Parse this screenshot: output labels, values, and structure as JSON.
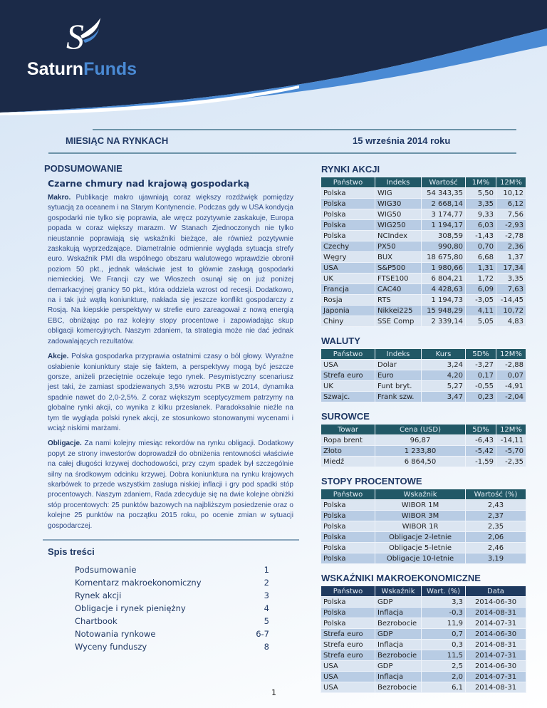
{
  "brand": {
    "name_a": "Saturn",
    "name_b": "Funds"
  },
  "header": {
    "title": "MIESIĄC NA RYNKACH",
    "date": "15 września 2014 roku"
  },
  "summary": {
    "section": "PODSUMOWANIE",
    "headline": "Czarne chmury nad krajową gospodarką",
    "paragraphs": [
      {
        "lead": "Makro.",
        "text": " Publikacje makro ujawniają coraz większy rozdźwięk pomiędzy sytuacją za oceanem i na Starym Kontynencie. Podczas gdy w USA kondycja gospodarki nie tylko się poprawia, ale wręcz pozytywnie zaskakuje, Europa popada w coraz większy marazm. W Stanach Zjednoczonych nie tylko nieustannie poprawiają się wskaźniki bieżące, ale również pozytywnie zaskakują wyprzedzające. Diametralnie odmiennie wygląda sytuacja strefy euro. Wskaźnik PMI dla wspólnego obszaru walutowego wprawdzie obronił poziom 50 pkt., jednak właściwie jest to głównie zasługą gospodarki niemieckiej. We Francji czy we Włoszech osunął się on już poniżej demarkacyjnej granicy 50 pkt., która oddziela wzrost od recesji. Dodatkowo, na i tak już wątłą koniunkturę, nakłada się jeszcze konflikt gospodarczy z Rosją. Na kiepskie perspektywy w strefie euro zareagował z nową energią EBC, obniżając po raz kolejny stopy procentowe i zapowiadając skup obligacji komercyjnych. Naszym zdaniem, ta strategia może nie dać jednak zadowalających rezultatów."
      },
      {
        "lead": "Akcje.",
        "text": " Polska gospodarka przyprawia ostatnimi czasy o ból głowy. Wyraźne osłabienie koniunktury staje się faktem, a perspektywy mogą być jeszcze gorsze, aniżeli przeciętnie oczekuje tego rynek. Pesymistyczny scenariusz jest taki, że zamiast spodziewanych 3,5% wzrostu PKB w 2014, dynamika spadnie nawet do 2,0-2,5%. Z coraz większym sceptycyzmem patrzymy na globalne rynki akcji, co wynika z kilku przesłanek. Paradoksalnie nieźle na tym tle wygląda polski rynek akcji, ze stosunkowo stonowanymi wycenami i wciąż niskimi marżami."
      },
      {
        "lead": "Obligacje.",
        "text": " Za nami kolejny miesiąc rekordów na rynku obligacji. Dodatkowy popyt ze strony inwestorów doprowadził do obniżenia rentowności właściwie na całej długości krzywej dochodowości, przy czym spadek był szczególnie silny na środkowym odcinku krzywej. Dobra koniunktura na rynku krajowych skarbówek to przede wszystkim zasługa niskiej inflacji i gry pod spadki stóp procentowych. Naszym zdaniem, Rada zdecyduje się na dwie kolejne obniżki stóp procentowych: 25 punktów bazowych na najbliższym posiedzenie oraz o kolejne 25 punktów na początku 2015 roku, po ocenie zmian w sytuacji gospodarczej."
      }
    ]
  },
  "toc": {
    "title": "Spis treści",
    "items": [
      [
        "Podsumowanie",
        "1"
      ],
      [
        "Komentarz makroekonomiczny",
        "2"
      ],
      [
        "Rynek akcji",
        "3"
      ],
      [
        "Obligacje i rynek pieniężny",
        "4"
      ],
      [
        "Chartbook",
        "5"
      ],
      [
        "Notowania rynkowe",
        "6-7"
      ],
      [
        "Wyceny funduszy",
        "8"
      ]
    ]
  },
  "page_number": "1",
  "tables": {
    "equities": {
      "title": "RYNKI AKCJI",
      "headers": [
        "Państwo",
        "Indeks",
        "Wartość",
        "1M%",
        "12M%"
      ],
      "rows": [
        [
          "Polska",
          "WIG",
          "54 343,35",
          "5,50",
          "10,12"
        ],
        [
          "Polska",
          "WIG30",
          "2 668,14",
          "3,35",
          "6,12"
        ],
        [
          "Polska",
          "WIG50",
          "3 174,77",
          "9,33",
          "7,56"
        ],
        [
          "Polska",
          "WIG250",
          "1 194,17",
          "6,03",
          "-2,93"
        ],
        [
          "Polska",
          "NCIndex",
          "308,59",
          "-1,43",
          "-2,78"
        ],
        [
          "Czechy",
          "PX50",
          "990,80",
          "0,70",
          "2,36"
        ],
        [
          "Węgry",
          "BUX",
          "18 675,80",
          "6,68",
          "1,37"
        ],
        [
          "USA",
          "S&P500",
          "1 980,66",
          "1,31",
          "17,34"
        ],
        [
          "UK",
          "FTSE100",
          "6 804,21",
          "1,72",
          "3,35"
        ],
        [
          "Francja",
          "CAC40",
          "4 428,63",
          "6,09",
          "7,63"
        ],
        [
          "Rosja",
          "RTS",
          "1 194,73",
          "-3,05",
          "-14,45"
        ],
        [
          "Japonia",
          "Nikkei225",
          "15 948,29",
          "4,11",
          "10,72"
        ],
        [
          "Chiny",
          "SSE Comp",
          "2 339,14",
          "5,05",
          "4,83"
        ]
      ]
    },
    "currencies": {
      "title": "WALUTY",
      "headers": [
        "Państwo",
        "Indeks",
        "Kurs",
        "5D%",
        "12M%"
      ],
      "rows": [
        [
          "USA",
          "Dolar",
          "3,24",
          "-3,27",
          "-2,88"
        ],
        [
          "Strefa euro",
          "Euro",
          "4,20",
          "0,17",
          "0,07"
        ],
        [
          "UK",
          "Funt bryt.",
          "5,27",
          "-0,55",
          "-4,91"
        ],
        [
          "Szwajc.",
          "Frank szw.",
          "3,47",
          "0,23",
          "-2,04"
        ]
      ]
    },
    "commodities": {
      "title": "SUROWCE",
      "headers": [
        "Towar",
        "Cena (USD)",
        "5D%",
        "12M%"
      ],
      "rows": [
        [
          "Ropa brent",
          "96,87",
          "-6,43",
          "-14,11"
        ],
        [
          "Złoto",
          "1 233,80",
          "-5,42",
          "-5,70"
        ],
        [
          "Miedź",
          "6 864,50",
          "-1,59",
          "-2,35"
        ]
      ]
    },
    "rates": {
      "title": "STOPY PROCENTOWE",
      "headers": [
        "Państwo",
        "Wskaźnik",
        "Wartość (%)"
      ],
      "rows": [
        [
          "Polska",
          "WIBOR 1M",
          "2,43"
        ],
        [
          "Polska",
          "WIBOR 3M",
          "2,37"
        ],
        [
          "Polska",
          "WIBOR 1R",
          "2,35"
        ],
        [
          "Polska",
          "Obligacje 2-letnie",
          "2,06"
        ],
        [
          "Polska",
          "Obligacje 5-letnie",
          "2,46"
        ],
        [
          "Polska",
          "Obligacje 10-letnie",
          "3,19"
        ]
      ]
    },
    "macro": {
      "title": "WSKAŹNIKI MAKROEKONOMICZNE",
      "headers": [
        "Państwo",
        "Wskaźnik",
        "Wart. (%)",
        "Data"
      ],
      "rows": [
        [
          "Polska",
          "GDP",
          "3,3",
          "2014-06-30"
        ],
        [
          "Polska",
          "Inflacja",
          "-0,3",
          "2014-08-31"
        ],
        [
          "Polska",
          "Bezrobocie",
          "11,9",
          "2014-07-31"
        ],
        [
          "Strefa euro",
          "GDP",
          "0,7",
          "2014-06-30"
        ],
        [
          "Strefa euro",
          "Inflacja",
          "0,3",
          "2014-08-31"
        ],
        [
          "Strefa euro",
          "Bezrobocie",
          "11,5",
          "2014-07-31"
        ],
        [
          "USA",
          "GDP",
          "2,5",
          "2014-06-30"
        ],
        [
          "USA",
          "Inflacja",
          "2,0",
          "2014-07-31"
        ],
        [
          "USA",
          "Bezrobocie",
          "6,1",
          "2014-08-31"
        ]
      ]
    }
  },
  "colors": {
    "navy": "#1b2a48",
    "teal_header": "#215866",
    "macro_header": "#1f3a5f",
    "row_dark": "#b8cce4",
    "row_light": "#dbe5f1"
  }
}
